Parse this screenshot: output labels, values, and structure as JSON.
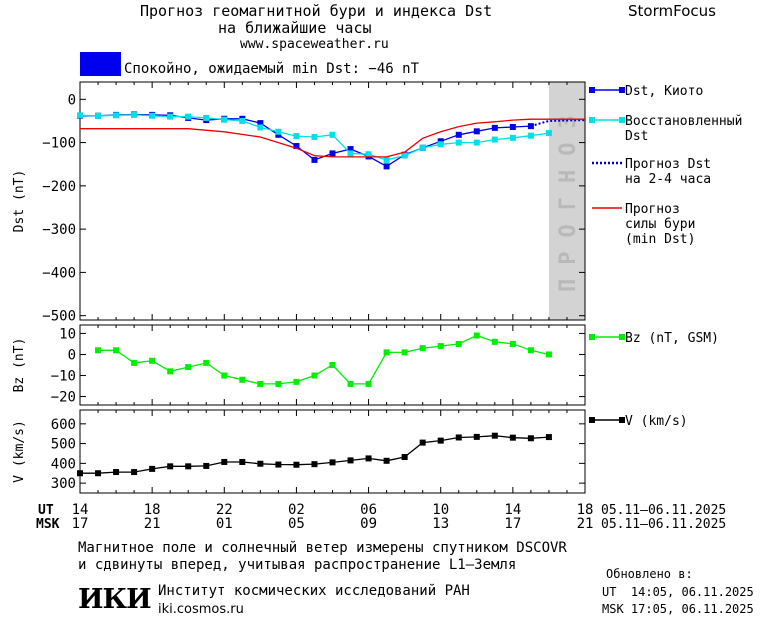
{
  "header": {
    "title_line1": "Прогноз геомагнитной бури и индекса Dst",
    "title_line2": "на ближайшие часы",
    "site": "www.spaceweather.ru",
    "brand": "StormFocus"
  },
  "status": {
    "text": "Спокойно, ожидаемый min Dst: −46 nT",
    "color": "#0000ee"
  },
  "forecast_band_label": "ПРОГНОЗ",
  "time_axis": {
    "ut_label": "UT",
    "msk_label": "MSK",
    "ut_ticks": [
      "14",
      "18",
      "22",
      "02",
      "06",
      "10",
      "14",
      "18"
    ],
    "msk_ticks": [
      "17",
      "21",
      "01",
      "05",
      "09",
      "13",
      "17",
      "21"
    ],
    "ut_date_range": "05.11–06.11.2025",
    "msk_date_range": "05.11–06.11.2025"
  },
  "footer": {
    "line1": "Магнитное поле и солнечный ветер измерены спутником DSCOVR",
    "line2": "и сдвинуты вперед, учитывая распространение L1–Земля",
    "updated_label": "Обновлено в:",
    "updated_ut": "UT  14:05, 06.11.2025",
    "updated_msk": "MSK 17:05, 06.11.2025",
    "institute_logo": "ИКИ",
    "institute_name": "Институт космических исследований РАН",
    "institute_url": "iki.cosmos.ru"
  },
  "chart_data": [
    {
      "type": "line",
      "panel": "dst",
      "ylabel": "Dst (nT)",
      "ylim": [
        -510,
        40
      ],
      "yticks": [
        0,
        -100,
        -200,
        -300,
        -400,
        -500
      ],
      "xlim_hours_ut": [
        14,
        42
      ],
      "forecast_region_hours": [
        40,
        42
      ],
      "series": [
        {
          "name": "Dst, Киото",
          "color": "#0000ee",
          "marker": "square",
          "x": [
            14,
            15,
            16,
            17,
            18,
            19,
            20,
            21,
            22,
            23,
            24,
            25,
            26,
            27,
            28,
            29,
            30,
            31,
            32,
            33,
            34,
            35,
            36,
            37,
            38,
            39
          ],
          "y": [
            -38,
            -38,
            -36,
            -35,
            -36,
            -37,
            -43,
            -48,
            -45,
            -45,
            -55,
            -82,
            -108,
            -140,
            -125,
            -115,
            -132,
            -155,
            -128,
            -112,
            -97,
            -82,
            -74,
            -66,
            -64,
            -62
          ]
        },
        {
          "name": "Восстановленный Dst",
          "color": "#00e0e8",
          "marker": "square",
          "x": [
            14,
            15,
            16,
            17,
            18,
            19,
            20,
            21,
            22,
            23,
            24,
            25,
            26,
            27,
            28,
            29,
            30,
            31,
            32,
            33,
            34,
            35,
            36,
            37,
            38,
            39,
            40
          ],
          "y": [
            -37,
            -38,
            -37,
            -36,
            -38,
            -40,
            -40,
            -43,
            -47,
            -50,
            -65,
            -75,
            -85,
            -87,
            -82,
            -125,
            -127,
            -140,
            -130,
            -112,
            -104,
            -100,
            -100,
            -93,
            -89,
            -84,
            -78
          ]
        },
        {
          "name": "Прогноз Dst на 2-4 часа",
          "color": "#0000cc",
          "style": "dotted",
          "x": [
            39,
            40,
            42
          ],
          "y": [
            -62,
            -50,
            -48
          ]
        },
        {
          "name": "Прогноз силы бури (min Dst)",
          "color": "#ee0000",
          "x": [
            14,
            20,
            22,
            24,
            26,
            27,
            28,
            29,
            30,
            31,
            32,
            33,
            34,
            35,
            36,
            37,
            38,
            39,
            40,
            41,
            42
          ],
          "y": [
            -68,
            -68,
            -75,
            -87,
            -113,
            -130,
            -133,
            -133,
            -133,
            -133,
            -122,
            -90,
            -75,
            -63,
            -55,
            -52,
            -48,
            -46,
            -46,
            -46,
            -46
          ]
        }
      ]
    },
    {
      "type": "line",
      "panel": "bz",
      "ylabel": "Bz (nT)",
      "ylim": [
        -24,
        14
      ],
      "yticks": [
        10,
        0,
        -10,
        -20
      ],
      "xlim_hours_ut": [
        14,
        42
      ],
      "series": [
        {
          "name": "Bz (nT, GSM)",
          "color": "#00ee00",
          "marker": "square",
          "x": [
            15,
            16,
            17,
            18,
            19,
            20,
            21,
            22,
            23,
            24,
            25,
            26,
            27,
            28,
            29,
            30,
            31,
            32,
            33,
            34,
            35,
            36,
            37,
            38,
            39,
            40
          ],
          "y": [
            2,
            2,
            -4,
            -3,
            -8,
            -6,
            -4,
            -10,
            -12,
            -14,
            -14,
            -13,
            -10,
            -5,
            -14,
            -14,
            1,
            1,
            3,
            4,
            5,
            9,
            6,
            5,
            2,
            0
          ]
        }
      ]
    },
    {
      "type": "line",
      "panel": "v",
      "ylabel": "V (km/s)",
      "ylim": [
        250,
        670
      ],
      "yticks": [
        300,
        400,
        500,
        600
      ],
      "xlim_hours_ut": [
        14,
        42
      ],
      "series": [
        {
          "name": "V (km/s)",
          "color": "#000000",
          "marker": "square",
          "x": [
            14,
            15,
            16,
            17,
            18,
            19,
            20,
            21,
            22,
            23,
            24,
            25,
            26,
            27,
            28,
            29,
            30,
            31,
            32,
            33,
            34,
            35,
            36,
            37,
            38,
            39,
            40
          ],
          "y": [
            350,
            350,
            356,
            356,
            372,
            385,
            385,
            387,
            407,
            407,
            398,
            394,
            393,
            396,
            405,
            415,
            425,
            413,
            432,
            505,
            515,
            531,
            534,
            540,
            530,
            527,
            533
          ]
        }
      ]
    }
  ]
}
